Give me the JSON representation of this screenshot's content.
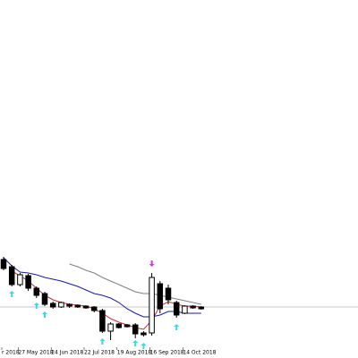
{
  "chart_data": {
    "type": "candlestick",
    "categories": [
      "r 2018",
      null,
      "27 May 2018",
      null,
      null,
      null,
      "24 Jun 2018",
      null,
      null,
      null,
      "22 Jul 2018",
      null,
      null,
      null,
      "19 Aug 2018",
      null,
      null,
      null,
      "16 Sep 2018",
      null,
      null,
      null,
      "14 Oct 2018",
      null,
      null
    ],
    "open": [
      110,
      102,
      82,
      92,
      78,
      72,
      61,
      57,
      60,
      59,
      58,
      57,
      53,
      30,
      38,
      37,
      37,
      28,
      28,
      83,
      78,
      62,
      50,
      58,
      57
    ],
    "high": [
      113,
      104,
      95,
      94,
      80,
      74,
      63,
      63,
      61,
      60,
      59,
      58,
      55,
      40,
      39,
      38,
      39,
      30,
      95,
      86,
      82,
      64,
      59,
      59,
      58
    ],
    "low": [
      98,
      80,
      80,
      75,
      67,
      58,
      55,
      56,
      56,
      56,
      55,
      51,
      28,
      20,
      33,
      34,
      22,
      24,
      25,
      50,
      60,
      45,
      49,
      55,
      54
    ],
    "close": [
      100,
      82,
      93,
      78,
      70,
      60,
      57,
      62,
      58,
      57,
      56,
      53,
      30,
      38,
      34,
      35,
      27,
      26,
      90,
      55,
      65,
      48,
      58,
      56,
      55
    ],
    "up_color": "#ffffff",
    "down_color": "#000000",
    "wick_color": "#000000",
    "series": [
      {
        "color": "#808080",
        "values": [
          null,
          null,
          null,
          null,
          null,
          null,
          null,
          null,
          105,
          102,
          98,
          95,
          90,
          86,
          82,
          78,
          74,
          72,
          72,
          70,
          68,
          66,
          64,
          62,
          60
        ]
      },
      {
        "color": "#1a1aa0",
        "values": [
          112,
          103,
          96,
          95,
          93,
          90,
          88,
          86,
          83,
          80,
          76,
          72,
          70,
          67,
          62,
          55,
          50,
          46,
          46,
          48,
          52,
          52,
          50,
          50,
          50
        ]
      },
      {
        "color": "#c03030",
        "values": [
          null,
          97,
          92,
          86,
          78,
          70,
          65,
          62,
          60,
          59,
          58,
          55,
          50,
          44,
          40,
          37,
          34,
          32,
          42,
          58,
          63,
          60,
          58,
          58,
          57
        ]
      }
    ],
    "up_arrows": [
      null,
      75,
      null,
      null,
      62,
      52,
      null,
      null,
      null,
      null,
      null,
      null,
      22,
      null,
      null,
      null,
      20,
      17,
      null,
      null,
      null,
      38,
      null,
      null,
      null
    ],
    "down_arrows": [
      null,
      null,
      null,
      null,
      null,
      null,
      null,
      null,
      null,
      null,
      null,
      null,
      null,
      null,
      null,
      null,
      null,
      null,
      102,
      null,
      null,
      null,
      null,
      null,
      null
    ],
    "up_arrow_color": "#33dddd",
    "down_arrow_color": "#dd33dd",
    "price_line": 57,
    "price_line_color": "#c8c8c8",
    "ylim": [
      0,
      400
    ]
  }
}
